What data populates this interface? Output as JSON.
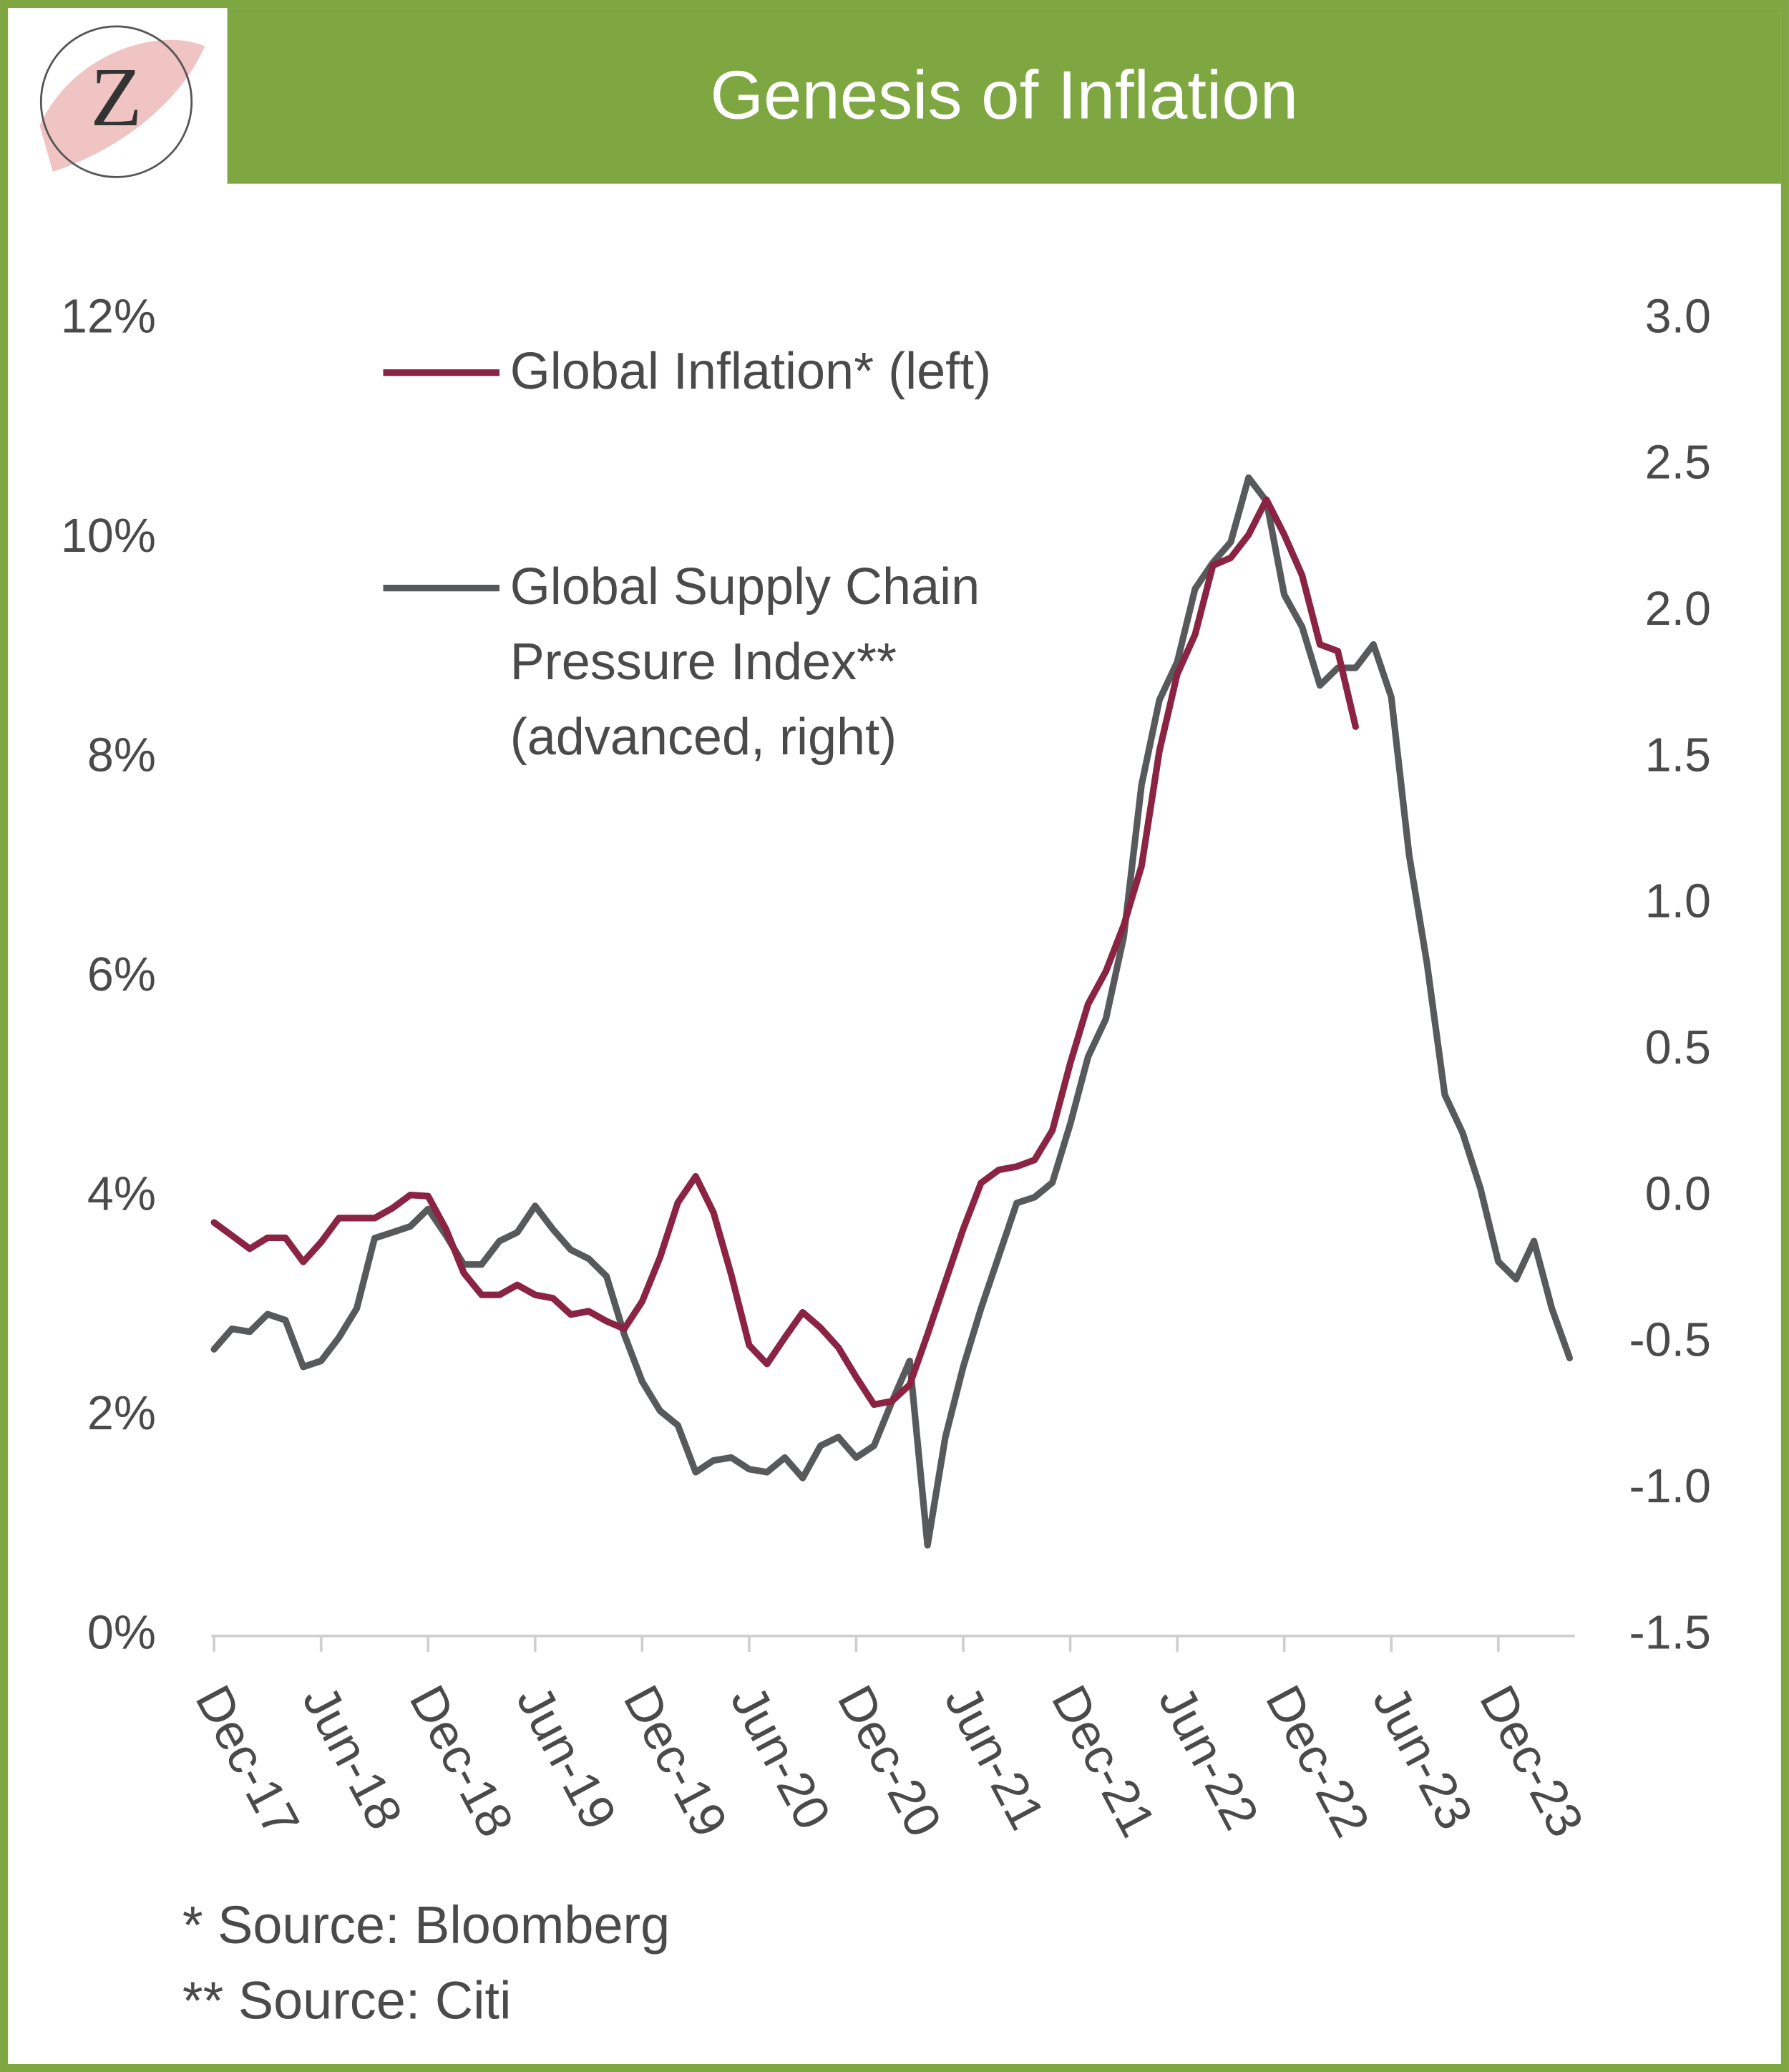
{
  "logo": "Z",
  "chart_data": {
    "type": "line",
    "title": "Genesis of Inflation",
    "categories": [
      "Dec-17",
      null,
      null,
      null,
      null,
      null,
      "Jun-18",
      null,
      null,
      null,
      null,
      null,
      "Dec-18",
      null,
      null,
      null,
      null,
      null,
      "Jun-19",
      null,
      null,
      null,
      null,
      null,
      "Dec-19",
      null,
      null,
      null,
      null,
      null,
      "Jun-20",
      null,
      null,
      null,
      null,
      null,
      "Dec-20",
      null,
      null,
      null,
      null,
      null,
      "Jun-21",
      null,
      null,
      null,
      null,
      null,
      "Dec-21",
      null,
      null,
      null,
      null,
      null,
      "Jun-22",
      null,
      null,
      null,
      null,
      null,
      "Dec-22",
      null,
      null,
      null,
      null,
      null,
      "Jun-23",
      null,
      null,
      null,
      null,
      null,
      "Dec-23",
      null,
      null,
      null,
      null
    ],
    "series": [
      {
        "name": "Global Inflation* (left)",
        "color": "#8b2343",
        "axis": "y",
        "values": [
          3.77,
          3.65,
          3.53,
          3.63,
          3.63,
          3.41,
          3.59,
          3.81,
          3.81,
          3.81,
          3.9,
          4.02,
          4.01,
          3.71,
          3.31,
          3.11,
          3.11,
          3.2,
          3.11,
          3.08,
          2.93,
          2.96,
          2.87,
          2.8,
          3.05,
          3.45,
          3.95,
          4.19,
          3.86,
          3.29,
          2.65,
          2.48,
          2.72,
          2.95,
          2.81,
          2.63,
          2.36,
          2.11,
          2.14,
          2.29,
          2.75,
          3.23,
          3.71,
          4.13,
          4.25,
          4.28,
          4.34,
          4.61,
          5.22,
          5.76,
          6.06,
          6.48,
          7.02,
          8.07,
          8.77,
          9.13,
          9.76,
          9.83,
          10.04,
          10.36,
          10.04,
          9.67,
          9.04,
          8.98,
          8.29,
          null,
          null,
          null,
          null,
          null,
          null,
          null,
          null,
          null,
          null,
          null,
          null
        ]
      },
      {
        "name": "Global Supply Chain Pressure Index** (advanced, right)",
        "color": "#58595b",
        "axis": "y2",
        "values": [
          -0.52,
          -0.45,
          -0.46,
          -0.4,
          -0.42,
          -0.58,
          -0.56,
          -0.48,
          -0.38,
          -0.14,
          -0.12,
          -0.1,
          -0.04,
          -0.13,
          -0.23,
          -0.23,
          -0.15,
          -0.12,
          -0.03,
          -0.11,
          -0.18,
          -0.21,
          -0.27,
          -0.47,
          -0.63,
          -0.73,
          -0.78,
          -0.94,
          -0.9,
          -0.89,
          -0.93,
          -0.94,
          -0.89,
          -0.96,
          -0.85,
          -0.82,
          -0.89,
          -0.85,
          -0.7,
          -0.56,
          -1.19,
          -0.82,
          -0.58,
          -0.38,
          -0.2,
          -0.02,
          0.0,
          0.05,
          0.25,
          0.48,
          0.61,
          0.89,
          1.41,
          1.7,
          1.83,
          2.08,
          2.17,
          2.24,
          2.46,
          2.38,
          2.06,
          1.95,
          1.75,
          1.81,
          1.81,
          1.89,
          1.71,
          1.17,
          0.8,
          0.35,
          0.22,
          0.03,
          -0.22,
          -0.28,
          -0.15,
          -0.38,
          -0.55
        ]
      }
    ],
    "ylim": [
      0,
      12
    ],
    "yticks": [
      {
        "value": 0,
        "label": "0%"
      },
      {
        "value": 2,
        "label": "2%"
      },
      {
        "value": 4,
        "label": "4%"
      },
      {
        "value": 6,
        "label": "6%"
      },
      {
        "value": 8,
        "label": "8%"
      },
      {
        "value": 10,
        "label": "10%"
      },
      {
        "value": 12,
        "label": "12%"
      }
    ],
    "y2lim": [
      -1.5,
      3
    ],
    "y2ticks": [
      -1.5,
      {
        "value": -1,
        "label": "-1.0"
      },
      -0.5,
      {
        "value": 0,
        "label": "0.0"
      },
      0.5,
      {
        "value": 1,
        "label": "1.0"
      },
      1.5,
      {
        "value": 2,
        "label": "2.0"
      },
      2.5,
      {
        "value": 3,
        "label": "3.0"
      }
    ],
    "grid": false,
    "notes": [
      "* Source: Bloomberg",
      "** Source: Citi"
    ]
  }
}
